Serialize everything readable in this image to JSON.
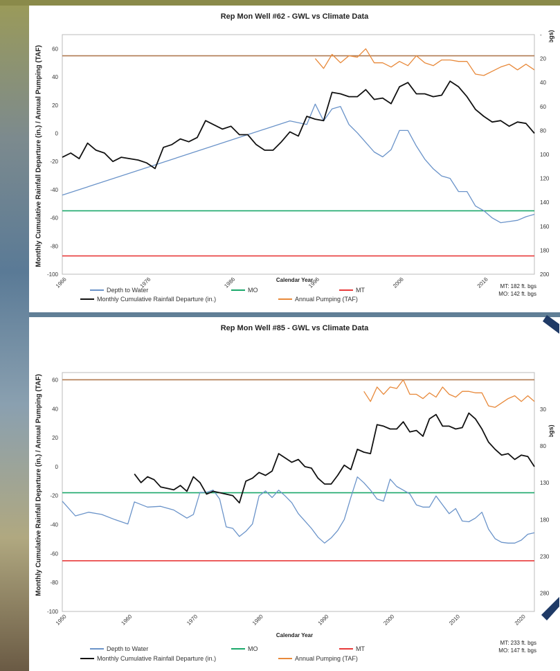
{
  "colors": {
    "depth": "#6a93c9",
    "rainfall": "#111111",
    "pumping": "#e8893a",
    "mo": "#1aa86a",
    "mt": "#e83a3a",
    "pumping_ref": "#b07a50"
  },
  "chart_data": [
    {
      "type": "line",
      "title": "Rep Mon Well #62 - GWL vs Climate Data",
      "ylabel": "Monthly Cumulative Rainfall Departure (in.) / Annual Pumping (TAF)",
      "ylabel_right": "Depth to Water (ft. bgs)",
      "xlabel": "Calendar Year",
      "xlim": [
        1966,
        2022
      ],
      "x_ticks": [
        "1966",
        "1976",
        "1986",
        "1996",
        "2006",
        "2016"
      ],
      "x_tick_values": [
        1966,
        1976,
        1986,
        1996,
        2006,
        2016
      ],
      "ylim_left": [
        -100,
        70
      ],
      "y_ticks_left": [
        "-100",
        "-80",
        "-60",
        "-40",
        "-20",
        "0",
        "20",
        "40",
        "60"
      ],
      "ylim_right": [
        0,
        200
      ],
      "y_ticks_right": [
        "-",
        "20",
        "40",
        "60",
        "80",
        "100",
        "120",
        "140",
        "160",
        "180",
        "200"
      ],
      "reference_lines_left": {
        "mo": -55,
        "mt": -87,
        "pumping": 55
      },
      "legend": [
        "Depth to Water",
        "MO",
        "MT",
        "Monthly Cumulative Rainfall Departure (in.)",
        "Annual Pumping (TAF)"
      ],
      "notes": [
        "MT: 182 ft. bgs",
        "MO: 142 ft. bgs"
      ],
      "series": [
        {
          "name": "Monthly Cumulative Rainfall Departure (in.)",
          "axis": "left",
          "color_key": "rainfall",
          "x": [
            1966,
            1967,
            1968,
            1969,
            1970,
            1971,
            1972,
            1973,
            1974,
            1975,
            1976,
            1977,
            1978,
            1979,
            1980,
            1981,
            1982,
            1983,
            1984,
            1985,
            1986,
            1987,
            1988,
            1989,
            1990,
            1991,
            1992,
            1993,
            1994,
            1995,
            1996,
            1997,
            1998,
            1999,
            2000,
            2001,
            2002,
            2003,
            2004,
            2005,
            2006,
            2007,
            2008,
            2009,
            2010,
            2011,
            2012,
            2013,
            2014,
            2015,
            2016,
            2017,
            2018,
            2019,
            2020,
            2021,
            2022
          ],
          "y": [
            -17,
            -14,
            -18,
            -7,
            -12,
            -14,
            -20,
            -17,
            -18,
            -19,
            -21,
            -25,
            -10,
            -8,
            -4,
            -6,
            -3,
            9,
            6,
            3,
            5,
            -1,
            -1,
            -8,
            -12,
            -12,
            -6,
            1,
            -2,
            12,
            10,
            9,
            29,
            28,
            26,
            26,
            31,
            24,
            25,
            21,
            33,
            36,
            28,
            28,
            26,
            27,
            37,
            33,
            26,
            17,
            12,
            8,
            9,
            5,
            8,
            7,
            0
          ]
        },
        {
          "name": "Depth to Water",
          "axis": "right",
          "color_key": "depth",
          "x": [
            1966,
            1993,
            1995,
            1996,
            1997,
            1998,
            1999,
            2000,
            2001,
            2002,
            2003,
            2004,
            2005,
            2006,
            2007,
            2008,
            2009,
            2010,
            2011,
            2012,
            2013,
            2014,
            2015,
            2016,
            2017,
            2018,
            2019,
            2020,
            2021,
            2022
          ],
          "y": [
            134,
            72,
            75,
            58,
            72,
            62,
            60,
            75,
            82,
            90,
            98,
            102,
            96,
            80,
            80,
            93,
            104,
            112,
            118,
            120,
            131,
            131,
            143,
            147,
            153,
            157,
            156,
            155,
            152,
            150
          ]
        },
        {
          "name": "Annual Pumping (TAF)",
          "axis": "left",
          "color_key": "pumping",
          "x": [
            1996,
            1997,
            1998,
            1999,
            2000,
            2001,
            2002,
            2003,
            2004,
            2005,
            2006,
            2007,
            2008,
            2009,
            2010,
            2011,
            2012,
            2013,
            2014,
            2015,
            2016,
            2017,
            2018,
            2019,
            2020,
            2021,
            2022
          ],
          "y": [
            53,
            46,
            56,
            50,
            55,
            54,
            60,
            50,
            50,
            47,
            51,
            48,
            55,
            50,
            48,
            52,
            52,
            51,
            51,
            42,
            41,
            44,
            47,
            49,
            45,
            49,
            45
          ]
        }
      ]
    },
    {
      "type": "line",
      "title": "Rep Mon Well #85 - GWL vs Climate Data",
      "ylabel": "Monthly Cumulative Rainfall Departure (in.) / Annual Pumping (TAF)",
      "ylabel_right": "Depth to Water (ft. bgs)",
      "xlabel": "Calendar Year",
      "xlim": [
        1950,
        2022
      ],
      "x_ticks": [
        "1950",
        "1960",
        "1970",
        "1980",
        "1990",
        "2000",
        "2010",
        "2020"
      ],
      "x_tick_values": [
        1950,
        1960,
        1970,
        1980,
        1990,
        2000,
        2010,
        2020
      ],
      "ylim_left": [
        -100,
        65
      ],
      "y_ticks_left": [
        "-100",
        "-80",
        "-60",
        "-40",
        "-20",
        "0",
        "20",
        "40",
        "60"
      ],
      "ylim_right": [
        -20,
        305
      ],
      "y_ticks_right": [
        "30",
        "80",
        "130",
        "180",
        "230",
        "280"
      ],
      "y_tick_values_right": [
        30,
        80,
        130,
        180,
        230,
        280
      ],
      "reference_lines_left": {
        "mo": -18,
        "mt": -65,
        "pumping": 60
      },
      "legend": [
        "Depth to Water",
        "MO",
        "MT",
        "Monthly Cumulative Rainfall Departure (in.)",
        "Annual Pumping (TAF)"
      ],
      "notes": [
        "MT: 233 ft. bgs",
        "MO: 147 ft. bgs"
      ],
      "series": [
        {
          "name": "Monthly Cumulative Rainfall Departure (in.)",
          "axis": "left",
          "color_key": "rainfall",
          "x": [
            1961,
            1962,
            1963,
            1964,
            1965,
            1966,
            1967,
            1968,
            1969,
            1970,
            1971,
            1972,
            1973,
            1974,
            1975,
            1976,
            1977,
            1978,
            1979,
            1980,
            1981,
            1982,
            1983,
            1984,
            1985,
            1986,
            1987,
            1988,
            1989,
            1990,
            1991,
            1992,
            1993,
            1994,
            1995,
            1996,
            1997,
            1998,
            1999,
            2000,
            2001,
            2002,
            2003,
            2004,
            2005,
            2006,
            2007,
            2008,
            2009,
            2010,
            2011,
            2012,
            2013,
            2014,
            2015,
            2016,
            2017,
            2018,
            2019,
            2020,
            2021,
            2022
          ],
          "y": [
            -5,
            -11,
            -7,
            -9,
            -14,
            -15,
            -16,
            -13,
            -17,
            -7,
            -11,
            -19,
            -17,
            -18,
            -19,
            -20,
            -25,
            -10,
            -8,
            -4,
            -6,
            -3,
            9,
            6,
            3,
            5,
            0,
            -1,
            -8,
            -12,
            -12,
            -6,
            1,
            -2,
            12,
            10,
            9,
            29,
            28,
            26,
            26,
            31,
            24,
            25,
            21,
            33,
            36,
            28,
            28,
            26,
            27,
            37,
            33,
            26,
            17,
            12,
            8,
            9,
            5,
            8,
            7,
            0
          ]
        },
        {
          "name": "Depth to Water",
          "axis": "right",
          "color_key": "depth",
          "x": [
            1950,
            1952,
            1954,
            1956,
            1958,
            1960,
            1961,
            1963,
            1965,
            1967,
            1969,
            1970,
            1971,
            1972,
            1973,
            1974,
            1975,
            1976,
            1977,
            1978,
            1979,
            1980,
            1981,
            1982,
            1983,
            1984,
            1985,
            1986,
            1987,
            1988,
            1989,
            1990,
            1991,
            1992,
            1993,
            1994,
            1995,
            1996,
            1997,
            1998,
            1999,
            2000,
            2001,
            2002,
            2003,
            2004,
            2005,
            2006,
            2007,
            2008,
            2009,
            2010,
            2011,
            2012,
            2013,
            2014,
            2015,
            2016,
            2017,
            2018,
            2019,
            2020,
            2021,
            2022
          ],
          "y": [
            155,
            175,
            170,
            173,
            180,
            186,
            156,
            163,
            162,
            167,
            178,
            173,
            143,
            143,
            140,
            152,
            190,
            192,
            203,
            196,
            186,
            148,
            141,
            150,
            140,
            148,
            157,
            172,
            182,
            192,
            204,
            212,
            205,
            195,
            180,
            150,
            122,
            130,
            140,
            152,
            155,
            125,
            135,
            140,
            145,
            160,
            163,
            163,
            148,
            160,
            172,
            165,
            182,
            183,
            178,
            170,
            193,
            206,
            211,
            212,
            212,
            208,
            200,
            198
          ]
        },
        {
          "name": "Annual Pumping (TAF)",
          "axis": "left",
          "color_key": "pumping",
          "x": [
            1996,
            1997,
            1998,
            1999,
            2000,
            2001,
            2002,
            2003,
            2004,
            2005,
            2006,
            2007,
            2008,
            2009,
            2010,
            2011,
            2012,
            2013,
            2014,
            2015,
            2016,
            2017,
            2018,
            2019,
            2020,
            2021,
            2022
          ],
          "y": [
            52,
            45,
            55,
            50,
            55,
            54,
            60,
            50,
            50,
            47,
            51,
            48,
            55,
            50,
            48,
            52,
            52,
            51,
            51,
            42,
            41,
            44,
            47,
            49,
            45,
            49,
            45
          ]
        }
      ]
    }
  ]
}
